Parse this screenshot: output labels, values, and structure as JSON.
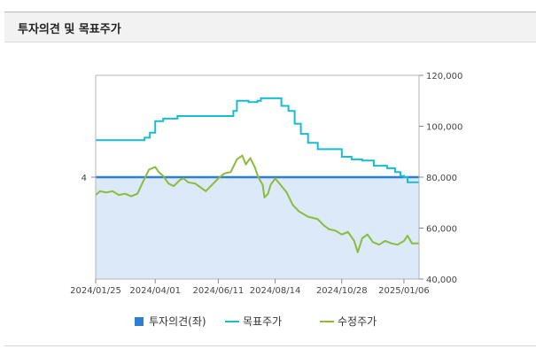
{
  "section": {
    "title": "투자의견 및 목표주가"
  },
  "chart_data": {
    "type": "line",
    "left_axis": {
      "ticks": [
        {
          "value": 4,
          "label": "4"
        }
      ]
    },
    "right_axis": {
      "ylim": [
        40000,
        120000
      ],
      "ticks": [
        {
          "value": 120000,
          "label": "120,000"
        },
        {
          "value": 100000,
          "label": "100,000"
        },
        {
          "value": 80000,
          "label": "80,000"
        },
        {
          "value": 60000,
          "label": "60,000"
        },
        {
          "value": 40000,
          "label": "40,000"
        }
      ]
    },
    "x_axis": {
      "range": [
        "2024-01-25",
        "2025-01-23"
      ],
      "ticks": [
        "2024/01/25",
        "2024/04/01",
        "2024/06/11",
        "2024/08/14",
        "2024/10/28",
        "2025/01/06"
      ]
    },
    "legend": [
      {
        "name": "투자의견(좌)",
        "color": "#2f7fd0"
      },
      {
        "name": "목표주가",
        "color": "#19bcd0"
      },
      {
        "name": "수정주가",
        "color": "#8cbb3c"
      }
    ],
    "series": [
      {
        "name": "투자의견(좌)",
        "kind": "area",
        "color": "#2f7fd0",
        "fill": "#dce9f8",
        "value": 4
      },
      {
        "name": "목표주가",
        "kind": "step",
        "color": "#19bcd0",
        "points": [
          [
            "2024-01-25",
            94500
          ],
          [
            "2024-03-14",
            94500
          ],
          [
            "2024-03-20",
            95500
          ],
          [
            "2024-03-26",
            97500
          ],
          [
            "2024-04-01",
            102000
          ],
          [
            "2024-04-10",
            103000
          ],
          [
            "2024-04-22",
            103000
          ],
          [
            "2024-04-26",
            104000
          ],
          [
            "2024-06-20",
            104000
          ],
          [
            "2024-06-28",
            106000
          ],
          [
            "2024-07-02",
            110000
          ],
          [
            "2024-07-10",
            110000
          ],
          [
            "2024-07-15",
            109500
          ],
          [
            "2024-07-25",
            110000
          ],
          [
            "2024-07-29",
            111000
          ],
          [
            "2024-08-16",
            111000
          ],
          [
            "2024-08-21",
            108000
          ],
          [
            "2024-08-29",
            106000
          ],
          [
            "2024-09-05",
            101000
          ],
          [
            "2024-09-12",
            97000
          ],
          [
            "2024-09-20",
            93500
          ],
          [
            "2024-10-01",
            91000
          ],
          [
            "2024-10-24",
            91000
          ],
          [
            "2024-10-28",
            88000
          ],
          [
            "2024-11-08",
            87000
          ],
          [
            "2024-11-20",
            86500
          ],
          [
            "2024-12-03",
            84500
          ],
          [
            "2024-12-18",
            83500
          ],
          [
            "2024-12-27",
            82000
          ],
          [
            "2025-01-02",
            80500
          ],
          [
            "2025-01-06",
            80000
          ],
          [
            "2025-01-10",
            78000
          ],
          [
            "2025-01-23",
            78000
          ]
        ]
      },
      {
        "name": "수정주가",
        "kind": "line",
        "color": "#8cbb3c",
        "points": [
          [
            "2024-01-25",
            73000
          ],
          [
            "2024-01-30",
            74500
          ],
          [
            "2024-02-06",
            74000
          ],
          [
            "2024-02-13",
            74500
          ],
          [
            "2024-02-20",
            73000
          ],
          [
            "2024-02-27",
            73500
          ],
          [
            "2024-03-05",
            72500
          ],
          [
            "2024-03-12",
            73500
          ],
          [
            "2024-03-18",
            78000
          ],
          [
            "2024-03-25",
            83000
          ],
          [
            "2024-04-01",
            84000
          ],
          [
            "2024-04-05",
            82000
          ],
          [
            "2024-04-10",
            80500
          ],
          [
            "2024-04-16",
            77500
          ],
          [
            "2024-04-22",
            76500
          ],
          [
            "2024-04-29",
            79000
          ],
          [
            "2024-05-03",
            79500
          ],
          [
            "2024-05-08",
            78000
          ],
          [
            "2024-05-16",
            77500
          ],
          [
            "2024-05-22",
            76000
          ],
          [
            "2024-05-28",
            74500
          ],
          [
            "2024-06-04",
            77000
          ],
          [
            "2024-06-11",
            79500
          ],
          [
            "2024-06-18",
            81500
          ],
          [
            "2024-06-25",
            82000
          ],
          [
            "2024-07-02",
            87000
          ],
          [
            "2024-07-08",
            88500
          ],
          [
            "2024-07-12",
            85000
          ],
          [
            "2024-07-17",
            87500
          ],
          [
            "2024-07-22",
            84000
          ],
          [
            "2024-07-26",
            80000
          ],
          [
            "2024-07-31",
            77000
          ],
          [
            "2024-08-02",
            72000
          ],
          [
            "2024-08-06",
            73500
          ],
          [
            "2024-08-09",
            77000
          ],
          [
            "2024-08-14",
            79500
          ],
          [
            "2024-08-20",
            77000
          ],
          [
            "2024-08-27",
            74000
          ],
          [
            "2024-09-03",
            69000
          ],
          [
            "2024-09-10",
            66500
          ],
          [
            "2024-09-20",
            64500
          ],
          [
            "2024-10-01",
            63500
          ],
          [
            "2024-10-08",
            61000
          ],
          [
            "2024-10-14",
            59500
          ],
          [
            "2024-10-21",
            59000
          ],
          [
            "2024-10-28",
            57500
          ],
          [
            "2024-11-04",
            58500
          ],
          [
            "2024-11-11",
            55000
          ],
          [
            "2024-11-15",
            50500
          ],
          [
            "2024-11-20",
            56000
          ],
          [
            "2024-11-26",
            57500
          ],
          [
            "2024-12-02",
            54500
          ],
          [
            "2024-12-09",
            53500
          ],
          [
            "2024-12-16",
            55000
          ],
          [
            "2024-12-23",
            54000
          ],
          [
            "2024-12-30",
            53500
          ],
          [
            "2025-01-06",
            55000
          ],
          [
            "2025-01-10",
            57000
          ],
          [
            "2025-01-15",
            54000
          ],
          [
            "2025-01-23",
            54000
          ]
        ]
      }
    ]
  }
}
